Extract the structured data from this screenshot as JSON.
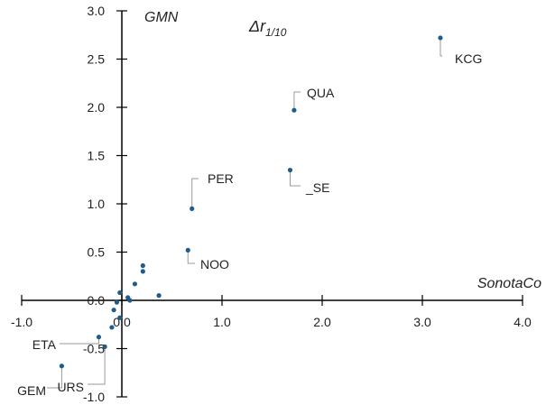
{
  "chart_data": {
    "type": "scatter",
    "title_main": "Δr",
    "title_sub": "1/10",
    "xlabel": "SonotaCo",
    "ylabel": "GMN",
    "xlim": [
      -1.0,
      4.0
    ],
    "ylim": [
      -1.0,
      3.0
    ],
    "x_ticks": [
      "-1.0",
      "0.0",
      "1.0",
      "2.0",
      "3.0",
      "4.0"
    ],
    "y_ticks": [
      "-1.0",
      "-0.5",
      "0.0",
      "0.5",
      "1.0",
      "1.5",
      "2.0",
      "2.5",
      "3.0"
    ],
    "marker_color": "#1f5c8a",
    "grid": false,
    "points": [
      {
        "x": 3.18,
        "y": 2.72,
        "label": "KCG"
      },
      {
        "x": 1.72,
        "y": 1.97,
        "label": "QUA"
      },
      {
        "x": 1.68,
        "y": 1.35,
        "label": "_SE"
      },
      {
        "x": 0.7,
        "y": 0.95,
        "label": "PER"
      },
      {
        "x": 0.66,
        "y": 0.52,
        "label": "NOO"
      },
      {
        "x": -0.23,
        "y": -0.38,
        "label": "ETA"
      },
      {
        "x": -0.6,
        "y": -0.68,
        "label": "GEM"
      },
      {
        "x": -0.17,
        "y": -0.48,
        "label": "URS"
      },
      {
        "x": 0.21,
        "y": 0.36,
        "label": ""
      },
      {
        "x": 0.21,
        "y": 0.3,
        "label": ""
      },
      {
        "x": 0.37,
        "y": 0.05,
        "label": ""
      },
      {
        "x": 0.13,
        "y": 0.17,
        "label": ""
      },
      {
        "x": -0.02,
        "y": 0.08,
        "label": ""
      },
      {
        "x": 0.06,
        "y": 0.03,
        "label": ""
      },
      {
        "x": 0.08,
        "y": 0.0,
        "label": ""
      },
      {
        "x": -0.05,
        "y": -0.02,
        "label": ""
      },
      {
        "x": -0.08,
        "y": -0.1,
        "label": ""
      },
      {
        "x": -0.02,
        "y": -0.18,
        "label": ""
      },
      {
        "x": -0.1,
        "y": -0.28,
        "label": ""
      }
    ]
  }
}
